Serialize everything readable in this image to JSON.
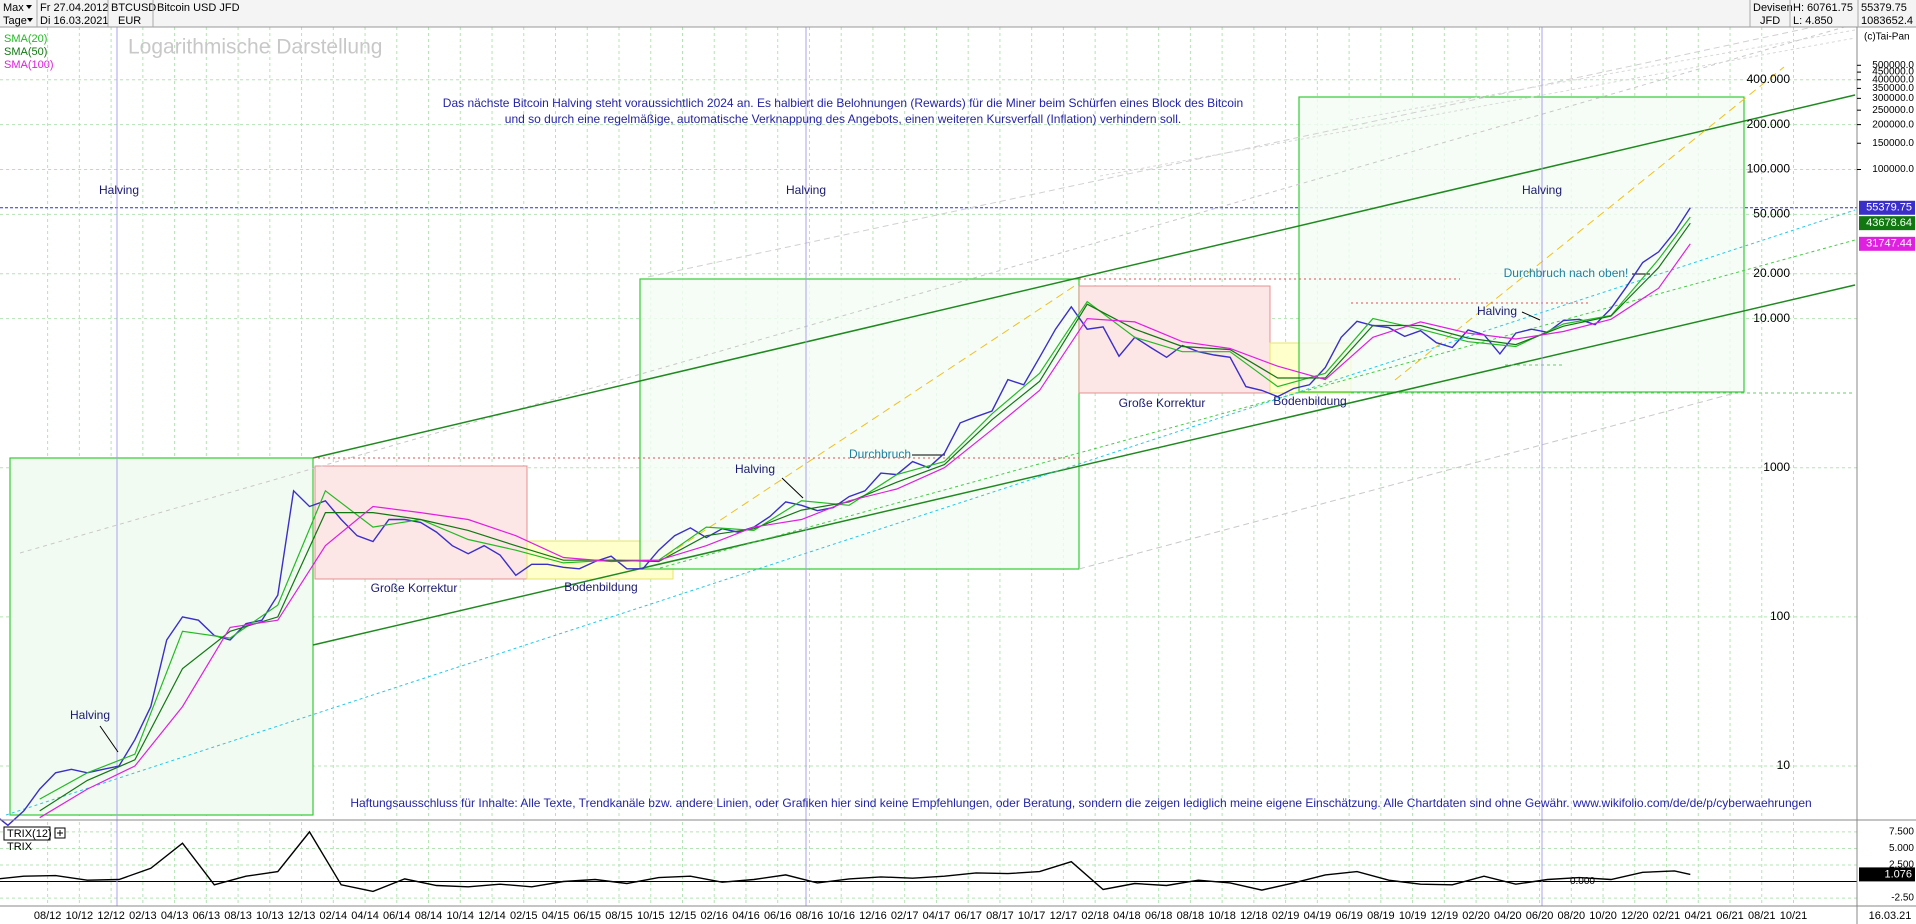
{
  "header": {
    "range": "Max",
    "interval": "Tage",
    "date_start": "Fr 27.04.2012",
    "date_end": "Di 16.03.2021",
    "symbol": "BTCUSD",
    "currency": "EUR",
    "market": "Devisen",
    "broker": "JFD",
    "high": "H: 60761.75",
    "low": "L: 4.850",
    "extra": "1083652.4",
    "copyright": "(c)Tai-Pan",
    "date_end_short": "16.03.21"
  },
  "notice": [
    "Das nächste Bitcoin Halving steht voraussichtlich 2024 an. Es halbiert die Belohnungen (Rewards) für die Miner beim Schürfen eines Block des Bitcoin",
    "und so durch eine regelmäßige, automatische Verknappung des Angebots, einen weiteren Kursverfall (Inflation) verhindern soll."
  ],
  "disclaimer": "Haftungsausschluss für Inhalte: Alle Texte, Trendkanäle bzw. andere Linien, oder Grafiken hier sind keine Empfehlungen, oder Beratung, sondern die zeigen lediglich meine eigene Einschätzung. Alle Chartdaten sind ohne Gewähr.  www.wikifolio.com/de/de/p/cyberwaehrungen",
  "annotations": [
    "Halving",
    "Halving",
    "Halving",
    "Halving",
    "Halving",
    "Halving",
    "Große Korrektur",
    "Bodenbildung",
    "Durchbruch",
    "Große Korrektur",
    "Bodenbildung",
    "Durchbruch nach oben!"
  ],
  "chart_data": [
    {
      "type": "line",
      "subtitle": "Logarithmische Darstellung",
      "log_y": true,
      "grid": true,
      "xlim": [
        "05/12",
        "02/22"
      ],
      "ylim": [
        4.41,
        903000
      ],
      "xticks": [
        "08/12",
        "10/12",
        "12/12",
        "02/13",
        "04/13",
        "06/13",
        "08/13",
        "10/13",
        "12/13",
        "02/14",
        "04/14",
        "06/14",
        "08/14",
        "10/14",
        "12/14",
        "02/15",
        "04/15",
        "06/15",
        "08/15",
        "10/15",
        "12/15",
        "02/16",
        "04/16",
        "06/16",
        "08/16",
        "10/16",
        "12/16",
        "02/17",
        "04/17",
        "06/17",
        "08/17",
        "10/17",
        "12/17",
        "02/18",
        "04/18",
        "06/18",
        "08/18",
        "10/18",
        "12/18",
        "02/19",
        "04/19",
        "06/19",
        "08/19",
        "10/19",
        "12/19",
        "02/20",
        "04/20",
        "06/20",
        "08/20",
        "10/20",
        "12/20",
        "02/21",
        "04/21",
        "06/21",
        "08/21",
        "10/21"
      ],
      "yticks": [
        {
          "value": 400000,
          "label": "400.000"
        },
        {
          "value": 200000,
          "label": "200.000"
        },
        {
          "value": 100000,
          "label": "100.000"
        },
        {
          "value": 50000,
          "label": "50.000"
        },
        {
          "value": 20000,
          "label": "20.000"
        },
        {
          "value": 10000,
          "label": "10.000"
        },
        1000,
        100,
        10
      ],
      "y_right_ticks": [
        {
          "value": 500000,
          "label": "500000.0"
        },
        {
          "value": 450000,
          "label": "450000.0"
        },
        {
          "value": 400000,
          "label": "400000.0"
        },
        {
          "value": 350000,
          "label": "350000.0"
        },
        {
          "value": 300000,
          "label": "300000.0"
        },
        {
          "value": 250000,
          "label": "250000.0"
        },
        {
          "value": 200000,
          "label": "200000.0"
        },
        {
          "value": 150000,
          "label": "150000.0"
        },
        {
          "value": 100000,
          "label": "100000.0"
        }
      ],
      "series": [
        {
          "name": "Bitcoin USD JFD",
          "color": "#3b2fc9",
          "x": [
            "04/12",
            "05/12",
            "06/12",
            "07/12",
            "08/12",
            "09/12",
            "10/12",
            "11/12",
            "12/12",
            "01/13",
            "02/13",
            "03/13",
            "04/13",
            "05/13",
            "06/13",
            "07/13",
            "08/13",
            "09/13",
            "10/13",
            "11/13",
            "12/13",
            "01/14",
            "02/14",
            "03/14",
            "04/14",
            "05/14",
            "06/14",
            "07/14",
            "08/14",
            "09/14",
            "10/14",
            "11/14",
            "12/14",
            "01/15",
            "02/15",
            "03/15",
            "04/15",
            "05/15",
            "06/15",
            "07/15",
            "08/15",
            "09/15",
            "10/15",
            "11/15",
            "12/15",
            "01/16",
            "02/16",
            "03/16",
            "04/16",
            "05/16",
            "06/16",
            "07/16",
            "08/16",
            "09/16",
            "10/16",
            "11/16",
            "12/16",
            "01/17",
            "02/17",
            "03/17",
            "04/17",
            "05/17",
            "06/17",
            "07/17",
            "08/17",
            "09/17",
            "10/17",
            "11/17",
            "12/17",
            "01/18",
            "02/18",
            "03/18",
            "04/18",
            "05/18",
            "06/18",
            "07/18",
            "08/18",
            "09/18",
            "10/18",
            "11/18",
            "12/18",
            "01/19",
            "02/19",
            "03/19",
            "04/19",
            "05/19",
            "06/19",
            "07/19",
            "08/19",
            "09/19",
            "10/19",
            "11/19",
            "12/19",
            "01/20",
            "02/20",
            "03/20",
            "04/20",
            "05/20",
            "06/20",
            "07/20",
            "08/20",
            "09/20",
            "10/20",
            "11/20",
            "12/20",
            "01/21",
            "02/21",
            "03/21"
          ],
          "values": [
            4.85,
            4,
            5,
            7,
            9,
            9.5,
            9,
            9.5,
            10,
            15,
            25,
            70,
            100,
            95,
            75,
            70,
            90,
            95,
            140,
            700,
            550,
            600,
            450,
            350,
            320,
            450,
            450,
            430,
            370,
            300,
            265,
            300,
            260,
            190,
            225,
            225,
            215,
            210,
            235,
            255,
            210,
            210,
            280,
            350,
            395,
            340,
            390,
            370,
            400,
            470,
            590,
            560,
            515,
            540,
            640,
            700,
            920,
            900,
            1100,
            1000,
            1250,
            2000,
            2200,
            2400,
            3900,
            3600,
            5500,
            8500,
            12000,
            8500,
            8800,
            5600,
            7500,
            6400,
            5500,
            6600,
            6000,
            5700,
            5500,
            3500,
            3300,
            3000,
            3400,
            3600,
            4700,
            7500,
            9600,
            9000,
            8700,
            7600,
            8300,
            6900,
            6400,
            8400,
            7800,
            5800,
            8000,
            8500,
            8100,
            9700,
            9900,
            9100,
            11700,
            16500,
            23800,
            28000,
            38000,
            55379.75
          ]
        },
        {
          "name": "SMA(20)",
          "color": "#22bb22",
          "x": [
            "07/12",
            "10/12",
            "01/13",
            "04/13",
            "07/13",
            "10/13",
            "01/14",
            "04/14",
            "07/14",
            "10/14",
            "01/15",
            "04/15",
            "07/15",
            "10/15",
            "01/16",
            "04/16",
            "07/16",
            "10/16",
            "01/17",
            "04/17",
            "07/17",
            "10/17",
            "01/18",
            "04/18",
            "07/18",
            "10/18",
            "01/19",
            "04/19",
            "07/19",
            "10/19",
            "01/20",
            "04/20",
            "07/20",
            "10/20",
            "01/21",
            "03/21"
          ],
          "values": [
            6,
            9,
            12,
            80,
            72,
            120,
            700,
            400,
            450,
            330,
            280,
            230,
            240,
            240,
            400,
            380,
            600,
            560,
            900,
            1100,
            2300,
            4300,
            13000,
            7500,
            6000,
            6000,
            3500,
            4300,
            10000,
            8500,
            7000,
            6500,
            9200,
            10500,
            25000,
            48000
          ]
        },
        {
          "name": "SMA(50)",
          "color": "#117711",
          "x": [
            "07/12",
            "10/12",
            "01/13",
            "04/13",
            "07/13",
            "10/13",
            "01/14",
            "04/14",
            "07/14",
            "10/14",
            "01/15",
            "04/15",
            "07/15",
            "10/15",
            "01/16",
            "04/16",
            "07/16",
            "10/16",
            "01/17",
            "04/17",
            "07/17",
            "10/17",
            "01/18",
            "04/18",
            "07/18",
            "10/18",
            "01/19",
            "04/19",
            "07/19",
            "10/19",
            "01/20",
            "04/20",
            "07/20",
            "10/20",
            "01/21",
            "03/21"
          ],
          "values": [
            5,
            8,
            11,
            45,
            80,
            100,
            500,
            500,
            450,
            380,
            300,
            240,
            240,
            235,
            350,
            390,
            520,
            590,
            800,
            1050,
            2100,
            3800,
            12500,
            8500,
            6500,
            6200,
            4000,
            4000,
            9000,
            9000,
            7400,
            6700,
            8900,
            10400,
            22000,
            43678.64
          ]
        },
        {
          "name": "SMA(100)",
          "color": "#e020e0",
          "x": [
            "07/12",
            "10/12",
            "01/13",
            "04/13",
            "07/13",
            "10/13",
            "01/14",
            "04/14",
            "07/14",
            "10/14",
            "01/15",
            "04/15",
            "07/15",
            "10/15",
            "01/16",
            "04/16",
            "07/16",
            "10/16",
            "01/17",
            "04/17",
            "07/17",
            "10/17",
            "01/18",
            "04/18",
            "07/18",
            "10/18",
            "01/19",
            "04/19",
            "07/19",
            "10/19",
            "01/20",
            "04/20",
            "07/20",
            "10/20",
            "01/21",
            "03/21"
          ],
          "values": [
            4.5,
            7,
            10,
            25,
            85,
            95,
            300,
            550,
            500,
            450,
            350,
            250,
            235,
            240,
            300,
            400,
            450,
            600,
            720,
            1000,
            1800,
            3300,
            10000,
            9500,
            7000,
            6300,
            4800,
            3900,
            7500,
            9500,
            8000,
            7300,
            8200,
            9900,
            16000,
            31747.44
          ]
        }
      ]
    },
    {
      "type": "line",
      "title": "TRIX(12)",
      "grid": true,
      "ylim": [
        -3.7,
        9.0
      ],
      "yticks": [
        {
          "value": 7.5,
          "label": "7.500"
        },
        {
          "value": 5,
          "label": "5.000"
        },
        {
          "value": 2.5,
          "label": "2.500"
        },
        {
          "value": 0,
          "label": "0.000"
        },
        {
          "value": -2.5,
          "label": "-2.50"
        }
      ],
      "series": [
        {
          "name": "TRIX",
          "color": "#000000",
          "x": [
            "04/12",
            "06/12",
            "08/12",
            "10/12",
            "12/12",
            "02/13",
            "04/13",
            "06/13",
            "08/13",
            "10/13",
            "12/13",
            "02/14",
            "04/14",
            "06/14",
            "08/14",
            "10/14",
            "12/14",
            "02/15",
            "04/15",
            "06/15",
            "08/15",
            "10/15",
            "12/15",
            "02/16",
            "04/16",
            "06/16",
            "08/16",
            "10/16",
            "12/16",
            "02/17",
            "04/17",
            "06/17",
            "08/17",
            "10/17",
            "12/17",
            "02/18",
            "04/18",
            "06/18",
            "08/18",
            "10/18",
            "12/18",
            "02/19",
            "04/19",
            "06/19",
            "08/19",
            "10/19",
            "12/19",
            "02/20",
            "04/20",
            "06/20",
            "08/20",
            "10/20",
            "12/20",
            "02/21",
            "03/21"
          ],
          "values": [
            0.3,
            0.8,
            0.9,
            0.2,
            0.3,
            2.0,
            5.8,
            -0.5,
            0.8,
            1.5,
            7.5,
            -0.5,
            -1.5,
            0.4,
            -0.6,
            -0.8,
            -0.4,
            -0.8,
            0.0,
            0.3,
            -0.3,
            0.6,
            0.8,
            -0.1,
            0.3,
            1.0,
            -0.2,
            0.4,
            0.7,
            0.5,
            0.8,
            1.3,
            1.2,
            1.5,
            3.0,
            -1.2,
            -0.3,
            -0.6,
            0.2,
            -0.2,
            -1.3,
            -0.2,
            1.0,
            1.5,
            0.2,
            -0.4,
            -0.5,
            0.8,
            -0.4,
            0.3,
            0.6,
            0.3,
            1.4,
            1.6,
            1.076
          ]
        }
      ]
    }
  ]
}
